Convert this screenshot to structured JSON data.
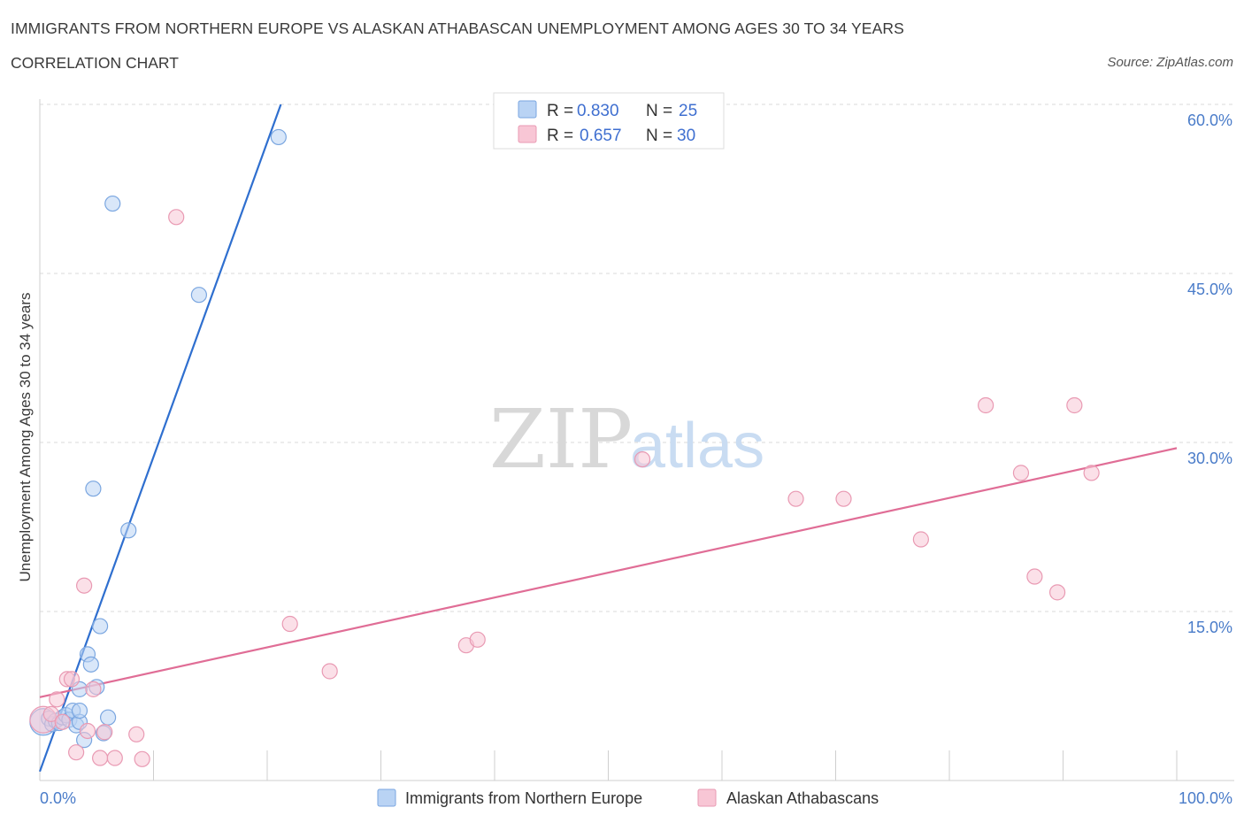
{
  "title": "IMMIGRANTS FROM NORTHERN EUROPE VS ALASKAN ATHABASCAN UNEMPLOYMENT AMONG AGES 30 TO 34 YEARS",
  "subtitle": "CORRELATION CHART",
  "source": "Source: ZipAtlas.com",
  "watermark": {
    "zip": "ZIP",
    "atlas": "atlas"
  },
  "colors": {
    "blue_fill": "#b9d3f4",
    "blue_stroke": "#7aa6e0",
    "blue_line": "#2f6fcf",
    "pink_fill": "#f8c6d5",
    "pink_stroke": "#e99ab3",
    "pink_line": "#e06d96",
    "grid": "#d9d9d9",
    "axis_label": "#4a7cc9"
  },
  "legend": {
    "r_label": "R =",
    "n_label": "N =",
    "rows": [
      {
        "series": "Immigrants from Northern Europe",
        "r": "0.830",
        "n": "25"
      },
      {
        "series": "Alaskan Athabascans",
        "r": "0.657",
        "n": "30"
      }
    ]
  },
  "chart_data": {
    "type": "scatter",
    "xlabel": "",
    "ylabel": "Unemployment Among Ages 30 to 34 years",
    "xlim": [
      0,
      100
    ],
    "ylim": [
      0,
      60
    ],
    "x_tick_labels": [
      "0.0%",
      "100.0%"
    ],
    "y_ticks": [
      15,
      30,
      45,
      60
    ],
    "y_tick_labels": [
      "15.0%",
      "30.0%",
      "45.0%",
      "60.0%"
    ],
    "grid": true,
    "series": [
      {
        "name": "Immigrants from Northern Europe",
        "color": "blue",
        "trendline": {
          "x": [
            0,
            21.2
          ],
          "y": [
            0.8,
            60
          ]
        },
        "points": [
          {
            "x": 0.3,
            "y": 5.2,
            "big": true
          },
          {
            "x": 0.8,
            "y": 5.5
          },
          {
            "x": 1.1,
            "y": 5.0
          },
          {
            "x": 1.4,
            "y": 5.3
          },
          {
            "x": 1.7,
            "y": 5.1
          },
          {
            "x": 2.0,
            "y": 5.6
          },
          {
            "x": 2.3,
            "y": 5.8
          },
          {
            "x": 2.6,
            "y": 5.4
          },
          {
            "x": 2.9,
            "y": 6.2
          },
          {
            "x": 3.2,
            "y": 4.9
          },
          {
            "x": 3.5,
            "y": 5.2
          },
          {
            "x": 3.5,
            "y": 6.2
          },
          {
            "x": 3.5,
            "y": 8.1
          },
          {
            "x": 3.9,
            "y": 3.6
          },
          {
            "x": 4.2,
            "y": 11.2
          },
          {
            "x": 4.5,
            "y": 10.3
          },
          {
            "x": 4.7,
            "y": 25.9
          },
          {
            "x": 5.0,
            "y": 8.3
          },
          {
            "x": 5.3,
            "y": 13.7
          },
          {
            "x": 5.6,
            "y": 4.2
          },
          {
            "x": 6.0,
            "y": 5.6
          },
          {
            "x": 6.4,
            "y": 51.2
          },
          {
            "x": 7.8,
            "y": 22.2
          },
          {
            "x": 14.0,
            "y": 43.1
          },
          {
            "x": 21.0,
            "y": 57.1
          }
        ]
      },
      {
        "name": "Alaskan Athabascans",
        "color": "pink",
        "trendline": {
          "x": [
            0,
            100
          ],
          "y": [
            7.4,
            29.5
          ]
        },
        "points": [
          {
            "x": 0.3,
            "y": 5.4,
            "big": true
          },
          {
            "x": 1.0,
            "y": 5.9
          },
          {
            "x": 1.5,
            "y": 7.2
          },
          {
            "x": 2.0,
            "y": 5.2
          },
          {
            "x": 2.4,
            "y": 9.0
          },
          {
            "x": 2.8,
            "y": 9.0
          },
          {
            "x": 3.2,
            "y": 2.5
          },
          {
            "x": 3.9,
            "y": 17.3
          },
          {
            "x": 4.2,
            "y": 4.4
          },
          {
            "x": 4.7,
            "y": 8.1
          },
          {
            "x": 5.3,
            "y": 2.0
          },
          {
            "x": 5.7,
            "y": 4.3
          },
          {
            "x": 6.6,
            "y": 2.0
          },
          {
            "x": 8.5,
            "y": 4.1
          },
          {
            "x": 9.0,
            "y": 1.9
          },
          {
            "x": 12.0,
            "y": 50.0
          },
          {
            "x": 22.0,
            "y": 13.9
          },
          {
            "x": 25.5,
            "y": 9.7
          },
          {
            "x": 37.5,
            "y": 12.0
          },
          {
            "x": 38.5,
            "y": 12.5
          },
          {
            "x": 53.0,
            "y": 28.5
          },
          {
            "x": 66.5,
            "y": 25.0
          },
          {
            "x": 70.7,
            "y": 25.0
          },
          {
            "x": 77.5,
            "y": 21.4
          },
          {
            "x": 83.2,
            "y": 33.3
          },
          {
            "x": 86.3,
            "y": 27.3
          },
          {
            "x": 87.5,
            "y": 18.1
          },
          {
            "x": 89.5,
            "y": 16.7
          },
          {
            "x": 91.0,
            "y": 33.3
          },
          {
            "x": 92.5,
            "y": 27.3
          }
        ]
      }
    ]
  }
}
